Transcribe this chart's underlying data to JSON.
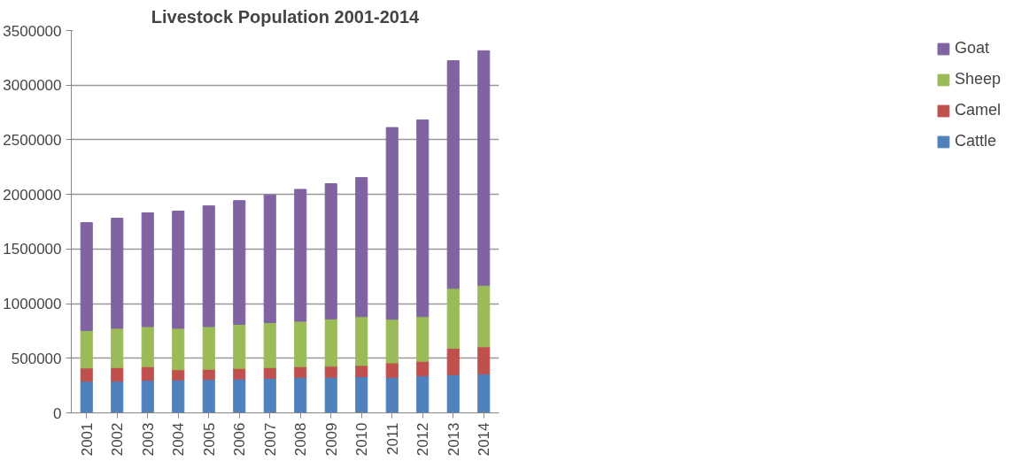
{
  "chart_data": {
    "type": "bar",
    "title": "Livestock Population 2001-2014",
    "stacked": true,
    "categories": [
      "2001",
      "2002",
      "2003",
      "2004",
      "2005",
      "2006",
      "2007",
      "2008",
      "2009",
      "2010",
      "2011",
      "2012",
      "2013",
      "2014"
    ],
    "series": [
      {
        "name": "Cattle",
        "color": "#4f81bd",
        "values": [
          290000,
          290000,
          298000,
          302000,
          306000,
          310000,
          318000,
          325000,
          325000,
          332000,
          325000,
          339000,
          350000,
          357000
        ]
      },
      {
        "name": "Camel",
        "color": "#c0504d",
        "values": [
          121000,
          125000,
          125000,
          93000,
          93000,
          97000,
          97000,
          98000,
          102000,
          102000,
          133000,
          133000,
          241000,
          248000
        ]
      },
      {
        "name": "Sheep",
        "color": "#9bbb59",
        "values": [
          343000,
          359000,
          367000,
          379000,
          391000,
          403000,
          412000,
          416000,
          433000,
          447000,
          399000,
          409000,
          549000,
          563000
        ]
      },
      {
        "name": "Goat",
        "color": "#8064a2",
        "values": [
          988000,
          1008000,
          1041000,
          1073000,
          1105000,
          1133000,
          1169000,
          1207000,
          1238000,
          1273000,
          1755000,
          1801000,
          2084000,
          2147000
        ]
      }
    ],
    "ylim": [
      0,
      3500000
    ],
    "yticks": [
      0,
      500000,
      1000000,
      1500000,
      2000000,
      2500000,
      3000000,
      3500000
    ],
    "grid": "y",
    "legend": "right"
  }
}
